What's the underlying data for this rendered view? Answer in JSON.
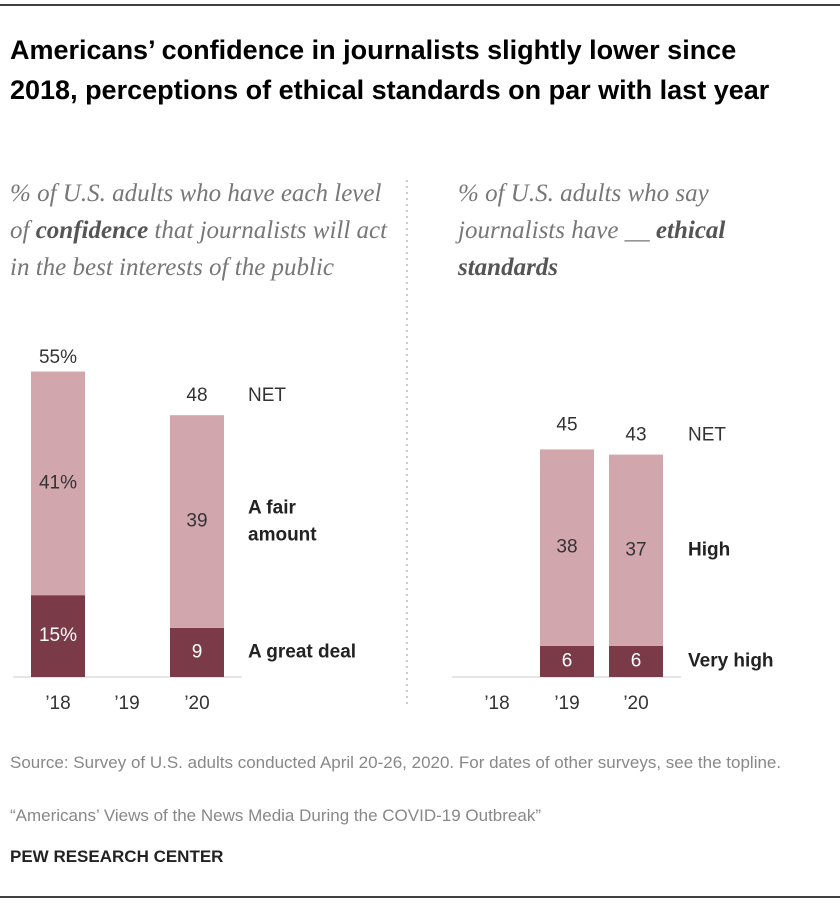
{
  "title": "Americans’ confidence in journalists slightly lower since 2018, perceptions of ethical standards on par with last year",
  "chart_data": [
    {
      "type": "bar",
      "stacked": true,
      "subtitle": [
        "% of U.S. adults who have each level of ",
        "confidence",
        " that journalists will act in the best interests of the public"
      ],
      "subtitle_emphasis": [
        1
      ],
      "categories": [
        "’18",
        "’19",
        "’20"
      ],
      "series": [
        {
          "name": "A great deal",
          "color": "#7b3a48",
          "values": [
            15,
            null,
            9
          ],
          "value_labels": [
            "15%",
            null,
            "9"
          ]
        },
        {
          "name": "A fair amount",
          "color": "#d2a6ad",
          "values": [
            41,
            null,
            39
          ],
          "value_labels": [
            "41%",
            null,
            "39"
          ]
        }
      ],
      "net": {
        "name": "NET",
        "values": [
          55,
          null,
          48
        ],
        "value_labels": [
          "55%",
          null,
          "48"
        ]
      },
      "ylim": [
        0,
        55
      ]
    },
    {
      "type": "bar",
      "stacked": true,
      "subtitle": [
        "% of U.S. adults who say journalists have __ ",
        "ethical standards"
      ],
      "subtitle_emphasis": [
        1
      ],
      "categories": [
        "’18",
        "’19",
        "’20"
      ],
      "series": [
        {
          "name": "Very high",
          "color": "#7b3a48",
          "values": [
            null,
            6,
            6
          ]
        },
        {
          "name": "High",
          "color": "#d2a6ad",
          "values": [
            null,
            38,
            37
          ]
        }
      ],
      "net": {
        "name": "NET",
        "values": [
          null,
          45,
          43
        ]
      },
      "ylim": [
        0,
        58
      ]
    }
  ],
  "source": "Source: Survey of U.S. adults conducted April 20-26, 2020. For dates of other surveys, see the topline.",
  "note": "“Americans’ Views of the News Media During the COVID-19 Outbreak”",
  "brand": "PEW RESEARCH CENTER"
}
